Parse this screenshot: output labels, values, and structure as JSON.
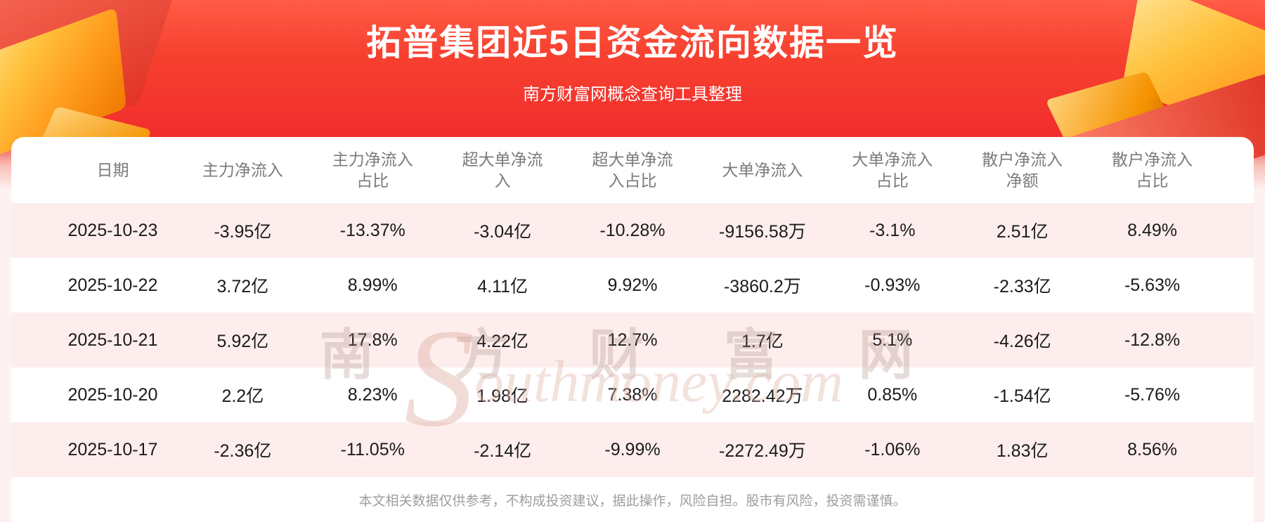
{
  "title": "拓普集团近5日资金流向数据一览",
  "subtitle": "南方财富网概念查询工具整理",
  "watermark": {
    "cn": "南 方 财 富 网",
    "initial": "S",
    "en": "outhmoney.com"
  },
  "chart_data": {
    "type": "table",
    "title": "拓普集团近5日资金流向数据一览",
    "columns": [
      "日期",
      "主力净流入",
      "主力净流入\n占比",
      "超大单净流\n入",
      "超大单净流\n入占比",
      "大单净流入",
      "大单净流入\n占比",
      "散户净流入\n净额",
      "散户净流入\n占比"
    ],
    "rows": [
      [
        "2025-10-23",
        "-3.95亿",
        "-13.37%",
        "-3.04亿",
        "-10.28%",
        "-9156.58万",
        "-3.1%",
        "2.51亿",
        "8.49%"
      ],
      [
        "2025-10-22",
        "3.72亿",
        "8.99%",
        "4.11亿",
        "9.92%",
        "-3860.2万",
        "-0.93%",
        "-2.33亿",
        "-5.63%"
      ],
      [
        "2025-10-21",
        "5.92亿",
        "17.8%",
        "4.22亿",
        "12.7%",
        "1.7亿",
        "5.1%",
        "-4.26亿",
        "-12.8%"
      ],
      [
        "2025-10-20",
        "2.2亿",
        "8.23%",
        "1.98亿",
        "7.38%",
        "2282.42万",
        "0.85%",
        "-1.54亿",
        "-5.76%"
      ],
      [
        "2025-10-17",
        "-2.36亿",
        "-11.05%",
        "-2.14亿",
        "-9.99%",
        "-2272.49万",
        "-1.06%",
        "1.83亿",
        "8.56%"
      ]
    ]
  },
  "footer": "本文相关数据仅供参考，不构成投资建议，据此操作，风险自担。股市有风险，投资需谨慎。",
  "colors": {
    "background_red": "#f22d2d",
    "gold_accent": "#ffb300",
    "row_pink": "#fdeeed",
    "header_text_gray": "#7b7b7b",
    "data_text_dark": "#1b1b1b",
    "footer_text_gray": "#9d9d9d"
  }
}
